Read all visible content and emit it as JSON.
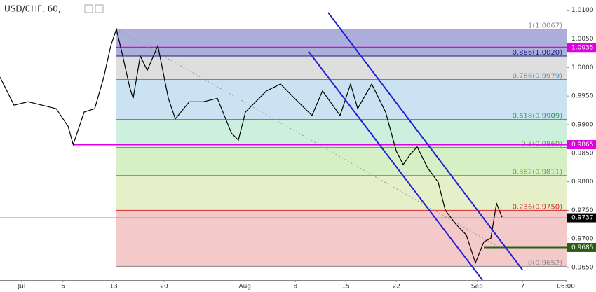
{
  "chart_data": {
    "type": "line",
    "title": "USD/CHF, 60,",
    "color": "#000000",
    "x": [
      -2.25,
      -0.86,
      0.53,
      1.92,
      3.31,
      4.49,
      5.0,
      6.08,
      7.13,
      8.03,
      8.72,
      9.28,
      9.9,
      10.6,
      10.94,
      11.64,
      12.33,
      13.38,
      14.42,
      15.11,
      16.5,
      17.89,
      19.28,
      20.67,
      21.36,
      22.06,
      24.14,
      25.53,
      26.92,
      28.65,
      29.69,
      31.43,
      32.47,
      33.17,
      34.56,
      35.94,
      36.99,
      37.68,
      38.38,
      39.07,
      40.11,
      41.15,
      41.85,
      42.89,
      43.93,
      44.83,
      45.67,
      46.36,
      46.92,
      47.47
    ],
    "values": [
      0.9983,
      0.9934,
      0.994,
      0.9934,
      0.9928,
      0.9897,
      0.9865,
      0.9922,
      0.9928,
      0.9983,
      1.0038,
      1.0067,
      1.002,
      0.9965,
      0.9946,
      1.002,
      0.9995,
      1.0038,
      0.9946,
      0.991,
      0.994,
      0.994,
      0.9946,
      0.9885,
      0.9873,
      0.9922,
      0.9959,
      0.9971,
      0.9946,
      0.9916,
      0.9959,
      0.9916,
      0.9971,
      0.9928,
      0.9971,
      0.9922,
      0.9854,
      0.983,
      0.9848,
      0.9861,
      0.9824,
      0.9799,
      0.975,
      0.9726,
      0.9707,
      0.9658,
      0.9695,
      0.9701,
      0.9762,
      0.9738
    ],
    "xlim": [
      -2.25,
      53.86
    ],
    "ylim": [
      0.9628,
      1.0118
    ],
    "xticks": [
      {
        "value": -0.1,
        "label": "Jul"
      },
      {
        "value": 4,
        "label": "6"
      },
      {
        "value": 9,
        "label": "13"
      },
      {
        "value": 14,
        "label": "20"
      },
      {
        "value": 22,
        "label": "Aug"
      },
      {
        "value": 27,
        "label": "8"
      },
      {
        "value": 32,
        "label": "15"
      },
      {
        "value": 37,
        "label": "22"
      },
      {
        "value": 45,
        "label": "Sep"
      },
      {
        "value": 49.5,
        "label": "7"
      },
      {
        "value": 53.8,
        "label": "06:00"
      }
    ],
    "yticks": [
      {
        "value": 0.965,
        "label": "0.9650"
      },
      {
        "value": 0.97,
        "label": "0.9700"
      },
      {
        "value": 0.975,
        "label": "0.9750"
      },
      {
        "value": 0.98,
        "label": "0.9800"
      },
      {
        "value": 0.985,
        "label": "0.9850"
      },
      {
        "value": 0.99,
        "label": "0.9900"
      },
      {
        "value": 0.995,
        "label": "0.9950"
      },
      {
        "value": 1,
        "label": "1.0000"
      },
      {
        "value": 1.005,
        "label": "1.0050"
      },
      {
        "value": 1.01,
        "label": "1.0100"
      }
    ],
    "fib": {
      "x_start": 9.28,
      "levels": [
        {
          "label": "1(1.0067)",
          "value": 1.0067,
          "color": "#8a8a8a"
        },
        {
          "label": "0.886(1.0020)",
          "value": 1.002,
          "color": "#1a237e"
        },
        {
          "label": "0.786(0.9979)",
          "value": 0.9979,
          "color": "#4a8fc9"
        },
        {
          "label": "0.618(0.9909)",
          "value": 0.9909,
          "color": "#2e9e5b"
        },
        {
          "label": "0.5(0.9860)",
          "value": 0.986,
          "color": "#4caf24"
        },
        {
          "label": "0.382(0.9811)",
          "value": 0.9811,
          "color": "#7fa11e"
        },
        {
          "label": "0.236(0.9750)",
          "value": 0.975,
          "color": "#d32f2f"
        },
        {
          "label": "0(0.9652)",
          "value": 0.9652,
          "color": "#8a8a8a"
        }
      ],
      "band_colors": [
        "#a9abd9",
        "#dcdcdc",
        "#c7e0f1",
        "#c9eedc",
        "#d3efc2",
        "#e5efc5",
        "#f2c6c6"
      ]
    },
    "price_lines": [
      {
        "value": 1.0035,
        "x_start": 9.28,
        "color": "#e000e0",
        "tag_color": "#e000e0"
      },
      {
        "value": 0.9865,
        "x_start": 5.0,
        "color": "#e000e0",
        "tag_color": "#e000e0"
      },
      {
        "value": 0.9737,
        "color": "#9a9a9a",
        "tag_color": "#000000"
      },
      {
        "value": 0.9685,
        "x_start": 45.67,
        "color": "#2e5e12",
        "tag_color": "#2e5e12"
      }
    ],
    "channel": {
      "color": "#1f1fd6",
      "lines": [
        {
          "x": [
            30.25,
            49.49
          ],
          "values": [
            1.0096,
            0.9646
          ]
        },
        {
          "x": [
            28.31,
            45.53
          ],
          "values": [
            1.0028,
            0.9628
          ]
        }
      ]
    },
    "trend": {
      "color": "#999999",
      "x": [
        9.28,
        47.4
      ],
      "values": [
        1.0067,
        0.9683
      ]
    }
  }
}
